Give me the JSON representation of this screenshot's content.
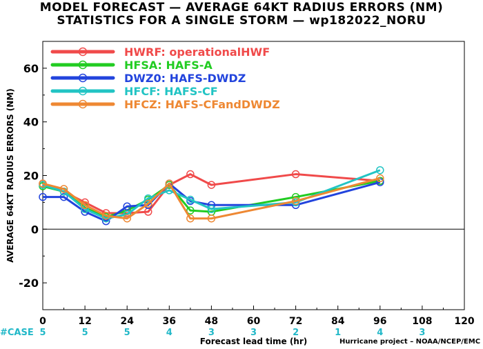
{
  "title_line1": "MODEL FORECAST — AVERAGE 64KT RADIUS ERRORS (NM)",
  "title_line2": "STATISTICS FOR A SINGLE STORM — wp182022_NORU",
  "credit": "Hurricane project – NOAA/NCEP/EMC",
  "case_label": "#CASE",
  "case_color": "#22b8c8",
  "chart_data": {
    "type": "line",
    "xlabel": "Forecast lead time (hr)",
    "ylabel": "AVERAGE 64KT RADIUS ERRORS (NM)",
    "xlim": [
      0,
      120
    ],
    "ylim": [
      -30,
      70
    ],
    "xticks": [
      0,
      12,
      24,
      36,
      48,
      60,
      72,
      84,
      96,
      108,
      120
    ],
    "yticks": [
      -20,
      0,
      20,
      40,
      60
    ],
    "zero_line": true,
    "legend_position": "top-left",
    "cases": [
      {
        "x": 0,
        "n": "5"
      },
      {
        "x": 12,
        "n": "5"
      },
      {
        "x": 24,
        "n": "5"
      },
      {
        "x": 36,
        "n": "4"
      },
      {
        "x": 48,
        "n": "3"
      },
      {
        "x": 60,
        "n": "3"
      },
      {
        "x": 72,
        "n": "2"
      },
      {
        "x": 84,
        "n": "1"
      },
      {
        "x": 96,
        "n": "4"
      },
      {
        "x": 108,
        "n": "3"
      }
    ],
    "series": [
      {
        "name": "HWRF: operationalHWF",
        "color": "#f04a4a",
        "x": [
          0,
          6,
          12,
          18,
          24,
          30,
          36,
          42,
          48,
          72,
          96
        ],
        "y": [
          17,
          14,
          10,
          6,
          6,
          6.5,
          16.5,
          20.5,
          16.5,
          20.5,
          18
        ]
      },
      {
        "name": "HFSA: HAFS-A",
        "color": "#22cc22",
        "x": [
          0,
          6,
          12,
          18,
          24,
          30,
          36,
          42,
          48,
          72,
          96
        ],
        "y": [
          16,
          14,
          8,
          4.5,
          7,
          11,
          16.5,
          7,
          6.5,
          12,
          18
        ]
      },
      {
        "name": "DWZ0: HAFS-DWDZ",
        "color": "#2244dd",
        "x": [
          0,
          6,
          12,
          18,
          24,
          30,
          36,
          42,
          48,
          72,
          96
        ],
        "y": [
          12,
          12,
          6.5,
          3,
          8.5,
          9,
          17,
          10.5,
          9,
          9,
          17.5
        ]
      },
      {
        "name": "HFCF: HAFS-CF",
        "color": "#22c4c4",
        "x": [
          0,
          6,
          12,
          18,
          24,
          30,
          36,
          42,
          48,
          72,
          96
        ],
        "y": [
          16.5,
          14,
          7.5,
          4,
          5.5,
          11.5,
          14.5,
          11,
          7.5,
          10,
          22
        ]
      },
      {
        "name": "HFCZ: HAFS-CFandDWDZ",
        "color": "#ee8833",
        "x": [
          0,
          6,
          12,
          18,
          24,
          30,
          36,
          42,
          48,
          72,
          96
        ],
        "y": [
          17,
          15,
          9,
          5,
          4,
          9.5,
          17,
          4,
          4,
          10.5,
          19
        ]
      }
    ]
  }
}
